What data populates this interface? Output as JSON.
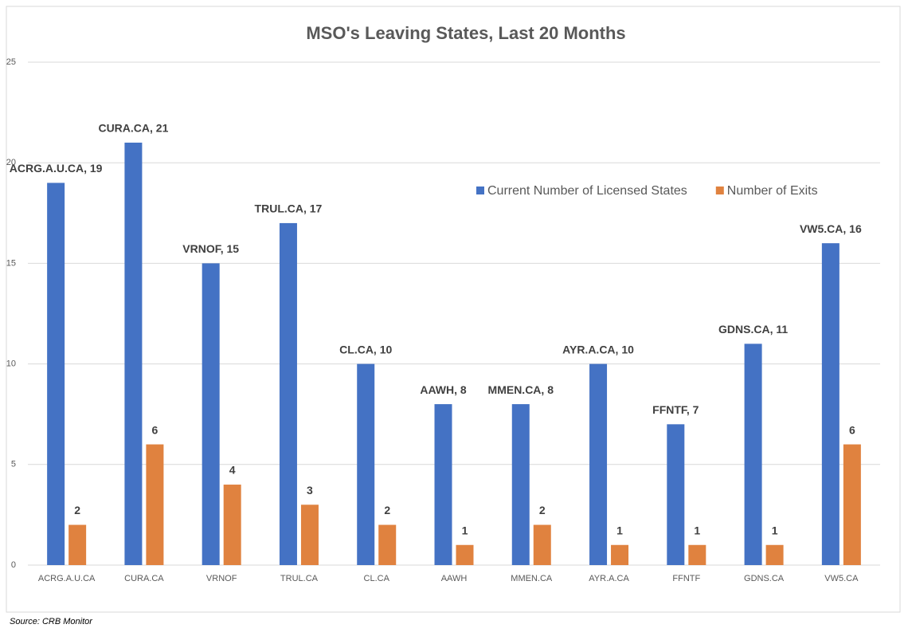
{
  "chart_data": {
    "type": "bar",
    "title": "MSO's Leaving States, Last 20 Months",
    "source": "Source: CRB Monitor",
    "categories": [
      "ACRG.A.U.CA",
      "CURA.CA",
      "VRNOF",
      "TRUL.CA",
      "CL.CA",
      "AAWH",
      "MMEN.CA",
      "AYR.A.CA",
      "FFNTF",
      "GDNS.CA",
      "VW5.CA"
    ],
    "series": [
      {
        "name": "Current Number of Licensed States",
        "color": "#4472c4",
        "values": [
          19,
          21,
          15,
          17,
          10,
          8,
          8,
          10,
          7,
          11,
          16
        ],
        "value_labels": [
          "ACRG.A.U.CA, 19",
          "CURA.CA, 21",
          "VRNOF, 15",
          "TRUL.CA, 17",
          "CL.CA, 10",
          "AAWH, 8",
          "MMEN.CA, 8",
          "AYR.A.CA, 10",
          "FFNTF, 7",
          "GDNS.CA, 11",
          "VW5.CA, 16"
        ]
      },
      {
        "name": "Number of Exits",
        "color": "#e0823f",
        "values": [
          2,
          6,
          4,
          3,
          2,
          1,
          2,
          1,
          1,
          1,
          6
        ]
      }
    ],
    "ylim": [
      0,
      25
    ],
    "yticks": [
      0,
      5,
      10,
      15,
      20,
      25
    ],
    "grid": true,
    "legend": "upper right"
  }
}
